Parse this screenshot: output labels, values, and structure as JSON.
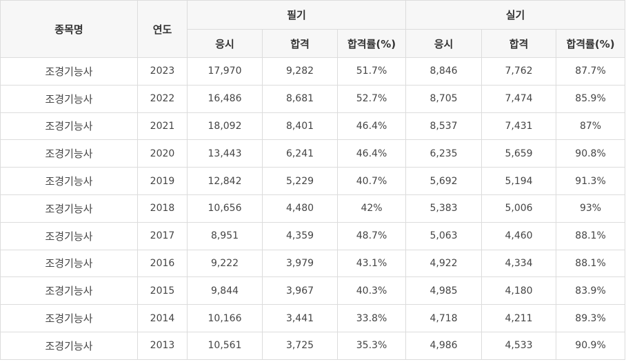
{
  "header": {
    "subject": "종목명",
    "year": "연도",
    "written_group": "필기",
    "practical_group": "실기",
    "written_cols": [
      "응시",
      "합격",
      "합격률(%)"
    ],
    "practical_cols": [
      "응시",
      "합격",
      "합격률(%)"
    ]
  },
  "rows": [
    {
      "name": "조경기능사",
      "year": "2023",
      "w_apply": "17,970",
      "w_pass": "9,282",
      "w_rate": "51.7%",
      "p_apply": "8,846",
      "p_pass": "7,762",
      "p_rate": "87.7%"
    },
    {
      "name": "조경기능사",
      "year": "2022",
      "w_apply": "16,486",
      "w_pass": "8,681",
      "w_rate": "52.7%",
      "p_apply": "8,705",
      "p_pass": "7,474",
      "p_rate": "85.9%"
    },
    {
      "name": "조경기능사",
      "year": "2021",
      "w_apply": "18,092",
      "w_pass": "8,401",
      "w_rate": "46.4%",
      "p_apply": "8,537",
      "p_pass": "7,431",
      "p_rate": "87%"
    },
    {
      "name": "조경기능사",
      "year": "2020",
      "w_apply": "13,443",
      "w_pass": "6,241",
      "w_rate": "46.4%",
      "p_apply": "6,235",
      "p_pass": "5,659",
      "p_rate": "90.8%"
    },
    {
      "name": "조경기능사",
      "year": "2019",
      "w_apply": "12,842",
      "w_pass": "5,229",
      "w_rate": "40.7%",
      "p_apply": "5,692",
      "p_pass": "5,194",
      "p_rate": "91.3%"
    },
    {
      "name": "조경기능사",
      "year": "2018",
      "w_apply": "10,656",
      "w_pass": "4,480",
      "w_rate": "42%",
      "p_apply": "5,383",
      "p_pass": "5,006",
      "p_rate": "93%"
    },
    {
      "name": "조경기능사",
      "year": "2017",
      "w_apply": "8,951",
      "w_pass": "4,359",
      "w_rate": "48.7%",
      "p_apply": "5,063",
      "p_pass": "4,460",
      "p_rate": "88.1%"
    },
    {
      "name": "조경기능사",
      "year": "2016",
      "w_apply": "9,222",
      "w_pass": "3,979",
      "w_rate": "43.1%",
      "p_apply": "4,922",
      "p_pass": "4,334",
      "p_rate": "88.1%"
    },
    {
      "name": "조경기능사",
      "year": "2015",
      "w_apply": "9,844",
      "w_pass": "3,967",
      "w_rate": "40.3%",
      "p_apply": "4,985",
      "p_pass": "4,180",
      "p_rate": "83.9%"
    },
    {
      "name": "조경기능사",
      "year": "2014",
      "w_apply": "10,166",
      "w_pass": "3,441",
      "w_rate": "33.8%",
      "p_apply": "4,718",
      "p_pass": "4,211",
      "p_rate": "89.3%"
    },
    {
      "name": "조경기능사",
      "year": "2013",
      "w_apply": "10,561",
      "w_pass": "3,725",
      "w_rate": "35.3%",
      "p_apply": "4,986",
      "p_pass": "4,533",
      "p_rate": "90.9%"
    }
  ]
}
